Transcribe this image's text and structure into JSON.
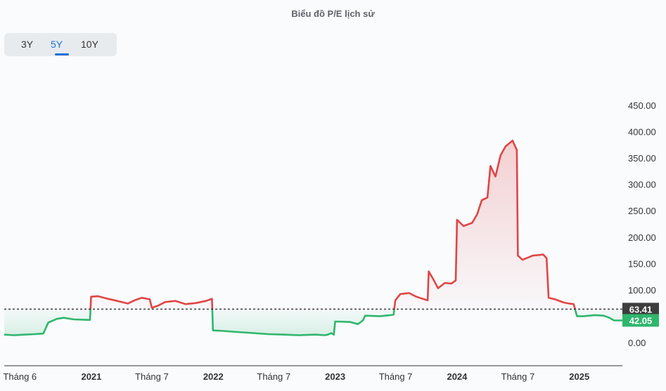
{
  "title": "Biểu đồ P/E lịch sử",
  "range_tabs": [
    {
      "label": "3Y",
      "active": false
    },
    {
      "label": "5Y",
      "active": true
    },
    {
      "label": "10Y",
      "active": false
    }
  ],
  "colors": {
    "above": "#e04545",
    "below": "#2fb66d",
    "reference_badge": "#3d3d3d",
    "current_badge": "#2fb66d",
    "active_tab": "#1a6fd6"
  },
  "chart_data": {
    "type": "line",
    "title": "Biểu đồ P/E lịch sử",
    "xlabel": "",
    "ylabel": "",
    "ylim": [
      0,
      450
    ],
    "y_ticks": [
      0,
      50,
      100,
      150,
      200,
      250,
      300,
      350,
      400,
      450
    ],
    "y_tick_labels": [
      "0.00",
      "50.00",
      "100.00",
      "150.00",
      "200.00",
      "250.00",
      "300.00",
      "350.00",
      "400.00",
      "450.00"
    ],
    "x_ticks": [
      {
        "date": "2020-06-01",
        "label": "Tháng 6",
        "bold": false
      },
      {
        "date": "2021-01-01",
        "label": "2021",
        "bold": true
      },
      {
        "date": "2021-07-01",
        "label": "Tháng 7",
        "bold": false
      },
      {
        "date": "2022-01-01",
        "label": "2022",
        "bold": true
      },
      {
        "date": "2022-07-01",
        "label": "Tháng 7",
        "bold": false
      },
      {
        "date": "2023-01-01",
        "label": "2023",
        "bold": true
      },
      {
        "date": "2023-07-01",
        "label": "Tháng 7",
        "bold": false
      },
      {
        "date": "2024-01-01",
        "label": "2024",
        "bold": true
      },
      {
        "date": "2024-07-01",
        "label": "Tháng 7",
        "bold": false
      },
      {
        "date": "2025-01-01",
        "label": "2025",
        "bold": true
      }
    ],
    "reference_line": {
      "value": 63.41,
      "label": "63.41"
    },
    "current_value": {
      "value": 42.05,
      "label": "42.05"
    },
    "series": [
      {
        "points": [
          [
            "2020-04-15",
            15
          ],
          [
            "2020-05-15",
            14
          ],
          [
            "2020-06-15",
            15
          ],
          [
            "2020-07-15",
            16
          ],
          [
            "2020-08-10",
            17
          ],
          [
            "2020-08-25",
            38
          ],
          [
            "2020-09-20",
            45
          ],
          [
            "2020-10-10",
            47
          ],
          [
            "2020-11-10",
            44
          ],
          [
            "2020-12-20",
            43
          ],
          [
            "2020-12-28",
            43
          ],
          [
            "2020-12-31",
            87
          ],
          [
            "2021-01-20",
            88
          ],
          [
            "2021-02-20",
            83
          ],
          [
            "2021-03-20",
            79
          ],
          [
            "2021-04-20",
            74
          ],
          [
            "2021-05-10",
            80
          ],
          [
            "2021-06-01",
            85
          ],
          [
            "2021-06-25",
            82
          ],
          [
            "2021-07-01",
            66
          ],
          [
            "2021-07-20",
            70
          ],
          [
            "2021-08-10",
            77
          ],
          [
            "2021-09-10",
            79
          ],
          [
            "2021-10-10",
            73
          ],
          [
            "2021-11-10",
            75
          ],
          [
            "2021-12-10",
            79
          ],
          [
            "2021-12-28",
            83
          ],
          [
            "2021-12-31",
            23
          ],
          [
            "2022-02-01",
            22
          ],
          [
            "2022-03-15",
            20
          ],
          [
            "2022-05-01",
            18
          ],
          [
            "2022-06-15",
            16
          ],
          [
            "2022-08-01",
            15
          ],
          [
            "2022-09-15",
            14
          ],
          [
            "2022-11-01",
            15
          ],
          [
            "2022-12-01",
            14
          ],
          [
            "2022-12-10",
            15
          ],
          [
            "2022-12-20",
            18
          ],
          [
            "2022-12-28",
            15
          ],
          [
            "2023-01-01",
            40
          ],
          [
            "2023-02-15",
            39
          ],
          [
            "2023-03-10",
            35
          ],
          [
            "2023-03-25",
            42
          ],
          [
            "2023-04-01",
            51
          ],
          [
            "2023-05-15",
            50
          ],
          [
            "2023-06-15",
            52
          ],
          [
            "2023-06-25",
            53
          ],
          [
            "2023-06-30",
            80
          ],
          [
            "2023-07-15",
            92
          ],
          [
            "2023-08-10",
            94
          ],
          [
            "2023-09-01",
            87
          ],
          [
            "2023-09-25",
            82
          ],
          [
            "2023-10-05",
            80
          ],
          [
            "2023-10-08",
            135
          ],
          [
            "2023-10-20",
            122
          ],
          [
            "2023-11-05",
            103
          ],
          [
            "2023-11-25",
            113
          ],
          [
            "2023-12-15",
            112
          ],
          [
            "2023-12-28",
            118
          ],
          [
            "2024-01-01",
            233
          ],
          [
            "2024-01-20",
            221
          ],
          [
            "2024-02-15",
            227
          ],
          [
            "2024-03-01",
            243
          ],
          [
            "2024-03-15",
            270
          ],
          [
            "2024-04-01",
            275
          ],
          [
            "2024-04-10",
            335
          ],
          [
            "2024-04-25",
            315
          ],
          [
            "2024-05-10",
            355
          ],
          [
            "2024-05-25",
            372
          ],
          [
            "2024-06-15",
            383
          ],
          [
            "2024-06-28",
            365
          ],
          [
            "2024-07-01",
            165
          ],
          [
            "2024-07-15",
            157
          ],
          [
            "2024-08-15",
            165
          ],
          [
            "2024-09-15",
            167
          ],
          [
            "2024-09-25",
            160
          ],
          [
            "2024-10-01",
            85
          ],
          [
            "2024-10-20",
            82
          ],
          [
            "2024-11-15",
            76
          ],
          [
            "2024-12-01",
            74
          ],
          [
            "2024-12-15",
            73
          ],
          [
            "2024-12-25",
            50
          ],
          [
            "2025-01-15",
            50
          ],
          [
            "2025-02-15",
            52
          ],
          [
            "2025-03-15",
            51
          ],
          [
            "2025-04-01",
            47
          ],
          [
            "2025-04-15",
            42
          ],
          [
            "2025-05-10",
            42
          ]
        ]
      }
    ]
  }
}
